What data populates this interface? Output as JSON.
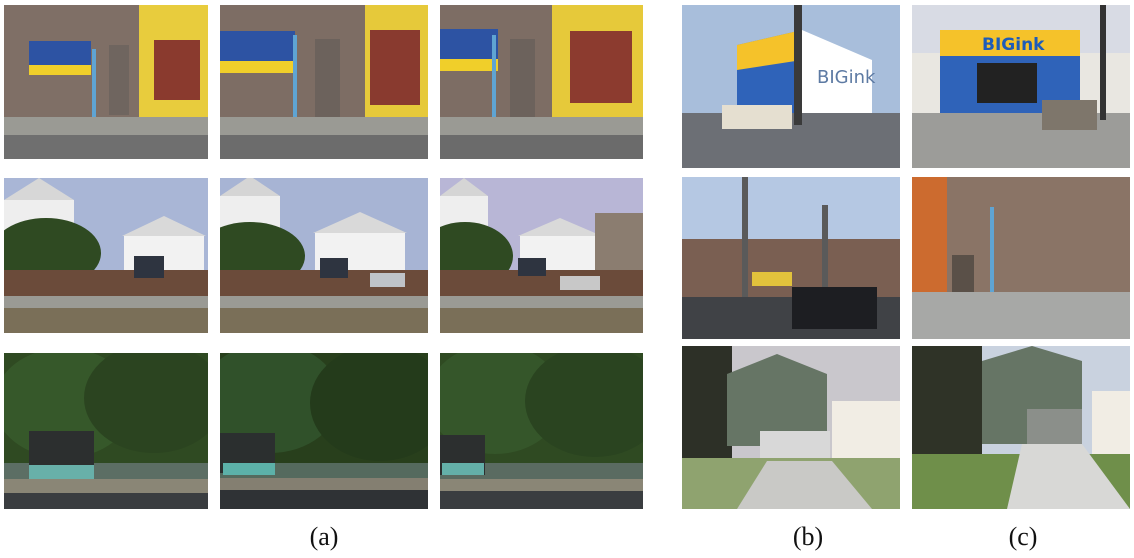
{
  "captions": {
    "a": "(a)",
    "b": "(b)",
    "c": "(c)"
  },
  "signs": {
    "big_ink": "BIGink"
  },
  "colors": {
    "awning_blue": "#2d53a3",
    "awning_yellow": "#f0cf2a",
    "yellow_wall": "#e8cc3d",
    "brick": "#8a7466",
    "sky": "#a9b6d6",
    "grass": "#4f7d34",
    "trees": "#2f4a22",
    "road": "#5f6368",
    "sidewalk": "#9a9a94",
    "big_blue": "#2f63b9",
    "big_yellow": "#f5c22a",
    "house_green": "#667565"
  }
}
